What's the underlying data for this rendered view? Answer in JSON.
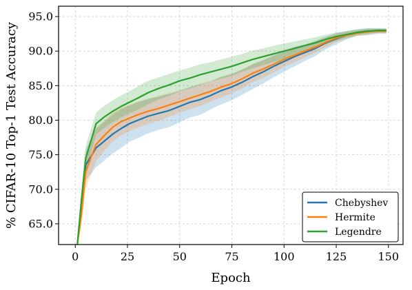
{
  "chart_data": {
    "type": "line",
    "xlabel": "Epoch",
    "ylabel": "% CIFAR-10 Top-1 Test Accuracy",
    "xlim": [
      -8,
      157
    ],
    "ylim": [
      62.0,
      96.5
    ],
    "xticks": [
      0,
      25,
      50,
      75,
      100,
      125,
      150
    ],
    "yticks": [
      65.0,
      70.0,
      75.0,
      80.0,
      85.0,
      90.0,
      95.0
    ],
    "x_tick_labels": [
      "0",
      "25",
      "50",
      "75",
      "100",
      "125",
      "150"
    ],
    "y_tick_labels": [
      "65.0",
      "70.0",
      "75.0",
      "80.0",
      "85.0",
      "90.0",
      "95.0"
    ],
    "grid": true,
    "legend_position": "bottom-right",
    "shaded_band": "min-max range across runs",
    "series": [
      {
        "name": "Chebyshev",
        "color": "#1f77b4",
        "x": [
          1,
          3,
          5,
          8,
          10,
          14,
          18,
          22,
          26,
          30,
          35,
          40,
          45,
          50,
          55,
          60,
          65,
          70,
          75,
          80,
          85,
          90,
          95,
          100,
          105,
          110,
          115,
          120,
          125,
          130,
          135,
          140,
          145,
          149
        ],
        "values": [
          62.0,
          67.5,
          73.5,
          75.0,
          76.0,
          77.0,
          78.0,
          78.8,
          79.5,
          80.0,
          80.6,
          81.0,
          81.4,
          82.0,
          82.6,
          83.0,
          83.6,
          84.3,
          84.8,
          85.5,
          86.3,
          87.0,
          87.8,
          88.5,
          89.2,
          89.8,
          90.4,
          91.2,
          91.8,
          92.3,
          92.7,
          92.8,
          92.9,
          92.9
        ],
        "band": [
          1.3,
          1.5,
          2.2,
          2.6,
          2.8,
          2.8,
          2.8,
          2.8,
          2.6,
          2.6,
          2.5,
          2.4,
          2.4,
          2.3,
          2.2,
          2.2,
          2.0,
          2.0,
          1.9,
          1.8,
          1.8,
          1.7,
          1.6,
          1.5,
          1.4,
          1.2,
          1.1,
          0.9,
          0.8,
          0.6,
          0.5,
          0.5,
          0.4,
          0.4
        ]
      },
      {
        "name": "Hermite",
        "color": "#ff7f0e",
        "x": [
          1,
          3,
          5,
          8,
          10,
          14,
          18,
          22,
          26,
          30,
          35,
          40,
          45,
          50,
          55,
          60,
          65,
          70,
          75,
          80,
          85,
          90,
          95,
          100,
          105,
          110,
          115,
          120,
          125,
          130,
          135,
          140,
          145,
          149
        ],
        "values": [
          62.0,
          66.5,
          72.5,
          75.0,
          76.5,
          77.8,
          79.0,
          79.8,
          80.3,
          80.8,
          81.3,
          81.7,
          82.2,
          82.7,
          83.2,
          83.7,
          84.2,
          84.8,
          85.3,
          86.0,
          86.8,
          87.4,
          88.1,
          88.8,
          89.4,
          90.0,
          90.6,
          91.3,
          91.9,
          92.3,
          92.6,
          92.8,
          92.9,
          92.9
        ],
        "band": [
          1.3,
          1.8,
          2.4,
          2.5,
          2.4,
          2.2,
          2.1,
          2.0,
          1.9,
          1.9,
          1.8,
          1.8,
          1.7,
          1.6,
          1.6,
          1.6,
          1.5,
          1.5,
          1.4,
          1.4,
          1.3,
          1.3,
          1.2,
          1.1,
          1.0,
          0.9,
          0.8,
          0.7,
          0.6,
          0.5,
          0.4,
          0.4,
          0.3,
          0.3
        ]
      },
      {
        "name": "Legendre",
        "color": "#2ca02c",
        "x": [
          1,
          3,
          5,
          8,
          10,
          14,
          18,
          22,
          26,
          30,
          35,
          40,
          45,
          50,
          55,
          60,
          65,
          70,
          75,
          80,
          85,
          90,
          95,
          100,
          105,
          110,
          115,
          120,
          125,
          130,
          135,
          140,
          145,
          149
        ],
        "values": [
          62.0,
          68.5,
          74.5,
          77.5,
          79.5,
          80.5,
          81.3,
          82.0,
          82.6,
          83.2,
          84.0,
          84.6,
          85.1,
          85.7,
          86.1,
          86.6,
          87.0,
          87.4,
          87.8,
          88.3,
          88.8,
          89.2,
          89.6,
          90.0,
          90.4,
          90.8,
          91.2,
          91.7,
          92.1,
          92.4,
          92.7,
          92.9,
          93.0,
          93.0
        ],
        "band": [
          1.3,
          1.6,
          1.8,
          1.7,
          1.6,
          1.6,
          1.6,
          1.6,
          1.6,
          1.7,
          1.7,
          1.6,
          1.6,
          1.5,
          1.5,
          1.5,
          1.4,
          1.4,
          1.4,
          1.3,
          1.3,
          1.2,
          1.2,
          1.1,
          1.0,
          0.9,
          0.8,
          0.7,
          0.6,
          0.5,
          0.4,
          0.4,
          0.3,
          0.3
        ]
      }
    ]
  }
}
